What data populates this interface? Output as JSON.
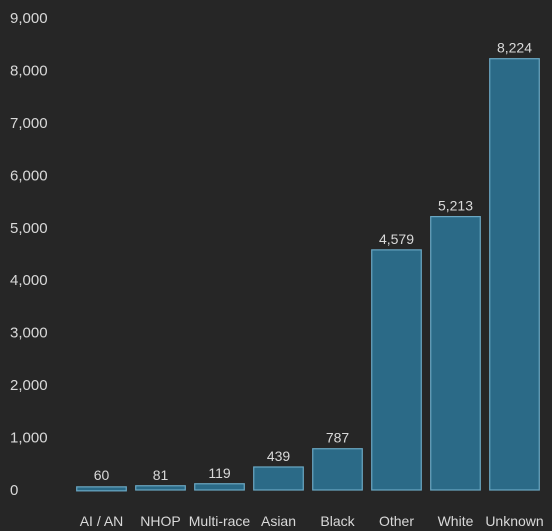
{
  "chart_data": {
    "type": "bar",
    "categories": [
      "AI / AN",
      "NHOP",
      "Multi-race",
      "Asian",
      "Black",
      "Other",
      "White",
      "Unknown"
    ],
    "values": [
      60,
      81,
      119,
      439,
      787,
      4579,
      5213,
      8224
    ],
    "value_labels": [
      "60",
      "81",
      "119",
      "439",
      "787",
      "4,579",
      "5,213",
      "8,224"
    ],
    "y_ticks": [
      0,
      1000,
      2000,
      3000,
      4000,
      5000,
      6000,
      7000,
      8000,
      9000
    ],
    "y_tick_labels": [
      "0",
      "1,000",
      "2,000",
      "3,000",
      "4,000",
      "5,000",
      "6,000",
      "7,000",
      "8,000",
      "9,000"
    ],
    "ylim": [
      0,
      9000
    ],
    "grid": false,
    "legend": "none",
    "title": "",
    "xlabel": "",
    "ylabel": "",
    "colors": {
      "background": "#262626",
      "bar_fill": "#2b6a87",
      "bar_edge": "#6aa8c4",
      "text": "#d9d9d9"
    }
  }
}
